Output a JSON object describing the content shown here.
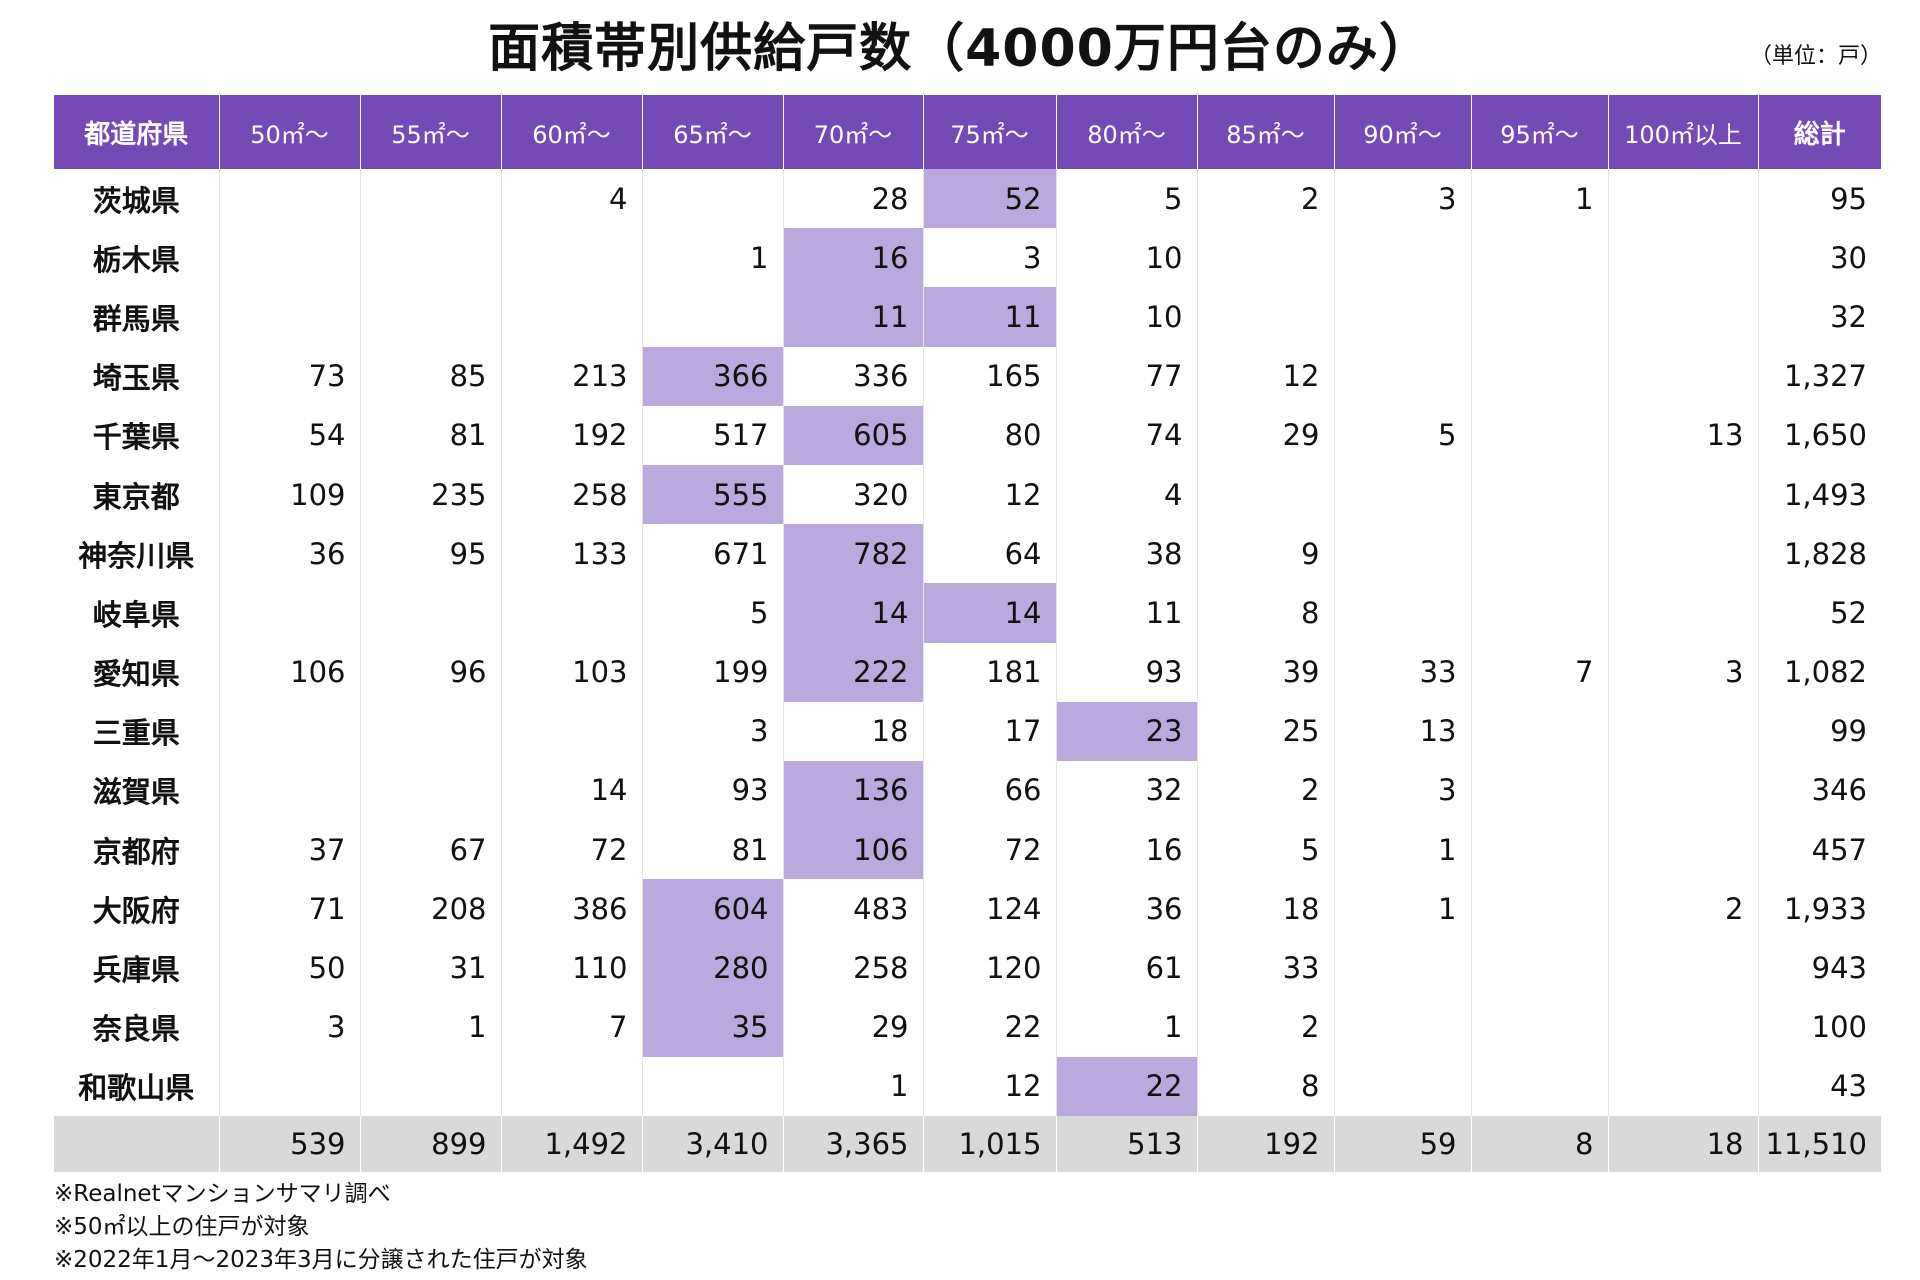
{
  "title": "面積帯別供給戸数（4000万円台のみ）",
  "unit": "（単位：戸）",
  "table": {
    "headers": [
      "都道府県",
      "50㎡～",
      "55㎡～",
      "60㎡～",
      "65㎡～",
      "70㎡～",
      "75㎡～",
      "80㎡～",
      "85㎡～",
      "90㎡～",
      "95㎡～",
      "100㎡以上",
      "総計"
    ],
    "rows": [
      {
        "prefecture": "茨城県",
        "values": [
          "",
          "",
          "4",
          "",
          "28",
          "52",
          "5",
          "2",
          "3",
          "1",
          "",
          "95"
        ],
        "highlight": 5
      },
      {
        "prefecture": "栃木県",
        "values": [
          "",
          "",
          "",
          "1",
          "16",
          "3",
          "10",
          "",
          "",
          "",
          "",
          "30"
        ],
        "highlight": 4
      },
      {
        "prefecture": "群馬県",
        "values": [
          "",
          "",
          "",
          "",
          "11",
          "11",
          "10",
          "",
          "",
          "",
          "",
          "32"
        ],
        "highlight": [
          4,
          5
        ]
      },
      {
        "prefecture": "埼玉県",
        "values": [
          "73",
          "85",
          "213",
          "366",
          "336",
          "165",
          "77",
          "12",
          "",
          "",
          "",
          "1,327"
        ],
        "highlight": 3
      },
      {
        "prefecture": "千葉県",
        "values": [
          "54",
          "81",
          "192",
          "517",
          "605",
          "80",
          "74",
          "29",
          "5",
          "",
          "13",
          "1,650"
        ],
        "highlight": 4
      },
      {
        "prefecture": "東京都",
        "values": [
          "109",
          "235",
          "258",
          "555",
          "320",
          "12",
          "4",
          "",
          "",
          "",
          "",
          "1,493"
        ],
        "highlight": 3
      },
      {
        "prefecture": "神奈川県",
        "values": [
          "36",
          "95",
          "133",
          "671",
          "782",
          "64",
          "38",
          "9",
          "",
          "",
          "",
          "1,828"
        ],
        "highlight": 4
      },
      {
        "prefecture": "岐阜県",
        "values": [
          "",
          "",
          "",
          "5",
          "14",
          "14",
          "11",
          "8",
          "",
          "",
          "",
          "52"
        ],
        "highlight": [
          4,
          5
        ]
      },
      {
        "prefecture": "愛知県",
        "values": [
          "106",
          "96",
          "103",
          "199",
          "222",
          "181",
          "93",
          "39",
          "33",
          "7",
          "3",
          "1,082"
        ],
        "highlight": 4
      },
      {
        "prefecture": "三重県",
        "values": [
          "",
          "",
          "",
          "3",
          "18",
          "17",
          "23",
          "25",
          "13",
          "",
          "",
          "99"
        ],
        "highlight": 6
      },
      {
        "prefecture": "滋賀県",
        "values": [
          "",
          "",
          "14",
          "93",
          "136",
          "66",
          "32",
          "2",
          "3",
          "",
          "",
          "346"
        ],
        "highlight": 4
      },
      {
        "prefecture": "京都府",
        "values": [
          "37",
          "67",
          "72",
          "81",
          "106",
          "72",
          "16",
          "5",
          "1",
          "",
          "",
          "457"
        ],
        "highlight": 4
      },
      {
        "prefecture": "大阪府",
        "values": [
          "71",
          "208",
          "386",
          "604",
          "483",
          "124",
          "36",
          "18",
          "1",
          "",
          "2",
          "1,933"
        ],
        "highlight": 3
      },
      {
        "prefecture": "兵庫県",
        "values": [
          "50",
          "31",
          "110",
          "280",
          "258",
          "120",
          "61",
          "33",
          "",
          "",
          "",
          "943"
        ],
        "highlight": 3
      },
      {
        "prefecture": "奈良県",
        "values": [
          "3",
          "1",
          "7",
          "35",
          "29",
          "22",
          "1",
          "2",
          "",
          "",
          "",
          "100"
        ],
        "highlight": 3
      },
      {
        "prefecture": "和歌山県",
        "values": [
          "",
          "",
          "",
          "",
          "1",
          "12",
          "22",
          "8",
          "",
          "",
          "",
          "43"
        ],
        "highlight": 6
      }
    ],
    "totals": [
      "539",
      "899",
      "1,492",
      "3,410",
      "3,365",
      "1,015",
      "513",
      "192",
      "59",
      "8",
      "18",
      "11,510"
    ]
  },
  "notes": [
    "※Realnetマンションサマリ調べ",
    "※50㎡以上の住戸が対象",
    "※2022年1月～2023年3月に分譲された住戸が対象"
  ],
  "colors": {
    "header_bg": "#7549b6",
    "highlight": "#b9a9dc",
    "total_row_bg": "#d9d9d9"
  }
}
